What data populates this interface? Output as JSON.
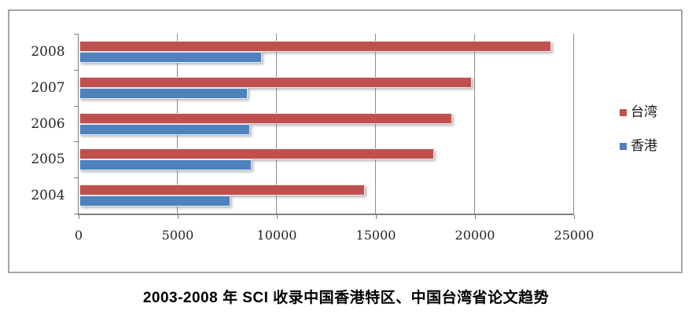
{
  "chart_data": {
    "type": "bar",
    "orientation": "horizontal",
    "title": "2003-2008 年 SCI 收录中国香港特区、中国台湾省论文趋势",
    "categories": [
      "2008",
      "2007",
      "2006",
      "2005",
      "2004"
    ],
    "series": [
      {
        "name": "台湾",
        "color": "#c0504d",
        "values": [
          23800,
          19800,
          18800,
          17900,
          14400
        ]
      },
      {
        "name": "香港",
        "color": "#4f81bd",
        "values": [
          9200,
          8500,
          8600,
          8700,
          7600
        ]
      }
    ],
    "xlabel": "",
    "ylabel": "",
    "xlim": [
      0,
      25000
    ],
    "xticks": [
      0,
      5000,
      10000,
      15000,
      20000,
      25000
    ],
    "grid": true,
    "legend_position": "right",
    "colors": {
      "grid": "#8c8c8c",
      "axis": "#7f7f7f",
      "frame_border": "#a6a6a6",
      "text": "#262626"
    }
  }
}
